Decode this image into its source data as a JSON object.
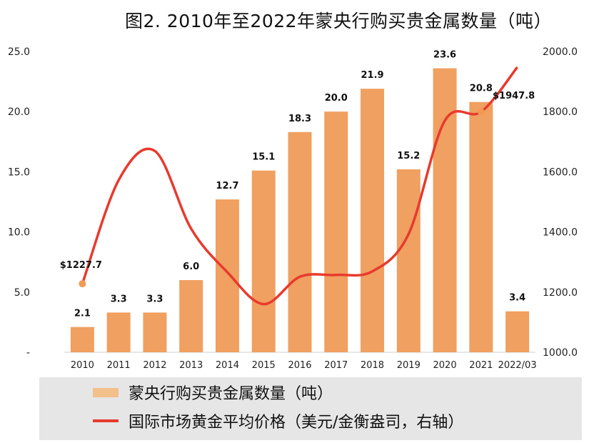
{
  "title": "图2. 2010年至2022年蒙央行购买贵金属数量（吨）",
  "legend": {
    "bar_label": "蒙央行购买贵金属数量（吨）",
    "line_label": "国际市场黄金平均价格（美元/金衡盎司，右轴）"
  },
  "colors": {
    "bar": "#f0a060",
    "bar_legend": "#f2c08a",
    "line": "#e83a2e",
    "marker": "#f29a55"
  },
  "chart_data": {
    "type": "bar",
    "categories": [
      "2010",
      "2011",
      "2012",
      "2013",
      "2014",
      "2015",
      "2016",
      "2017",
      "2018",
      "2019",
      "2020",
      "2021",
      "2022/03"
    ],
    "series": [
      {
        "name": "蒙央行购买贵金属数量（吨）",
        "type": "bar",
        "axis": "left",
        "values": [
          2.1,
          3.3,
          3.3,
          6.0,
          12.7,
          15.1,
          18.3,
          20.0,
          21.9,
          15.2,
          23.6,
          20.8,
          3.4
        ],
        "labels": [
          "2.1",
          "3.3",
          "3.3",
          "6.0",
          "12.7",
          "15.1",
          "18.3",
          "20.0",
          "21.9",
          "15.2",
          "23.6",
          "20.8",
          "3.4"
        ]
      },
      {
        "name": "国际市场黄金平均价格（美元/金衡盎司，右轴）",
        "type": "line",
        "axis": "right",
        "values": [
          1227.7,
          1572,
          1669,
          1411,
          1266,
          1160,
          1251,
          1257,
          1269,
          1393,
          1770,
          1799,
          1947.8
        ],
        "point_labels": [
          {
            "index": 0,
            "text": "$1227.7"
          },
          {
            "index": 12,
            "text": "$1947.8"
          }
        ]
      }
    ],
    "y_left": {
      "min": 0,
      "max": 25,
      "ticks": [
        0,
        5,
        10,
        15,
        20,
        25
      ],
      "tick_labels": [
        "-",
        "5.0",
        "10.0",
        "15.0",
        "20.0",
        "25.0"
      ]
    },
    "y_right": {
      "min": 1000,
      "max": 2000,
      "ticks": [
        1000,
        1200,
        1400,
        1600,
        1800,
        2000
      ],
      "tick_labels": [
        "1000.0",
        "1200.0",
        "1400.0",
        "1600.0",
        "1800.0",
        "2000.0"
      ]
    },
    "grid": false,
    "legend_position": "bottom"
  }
}
